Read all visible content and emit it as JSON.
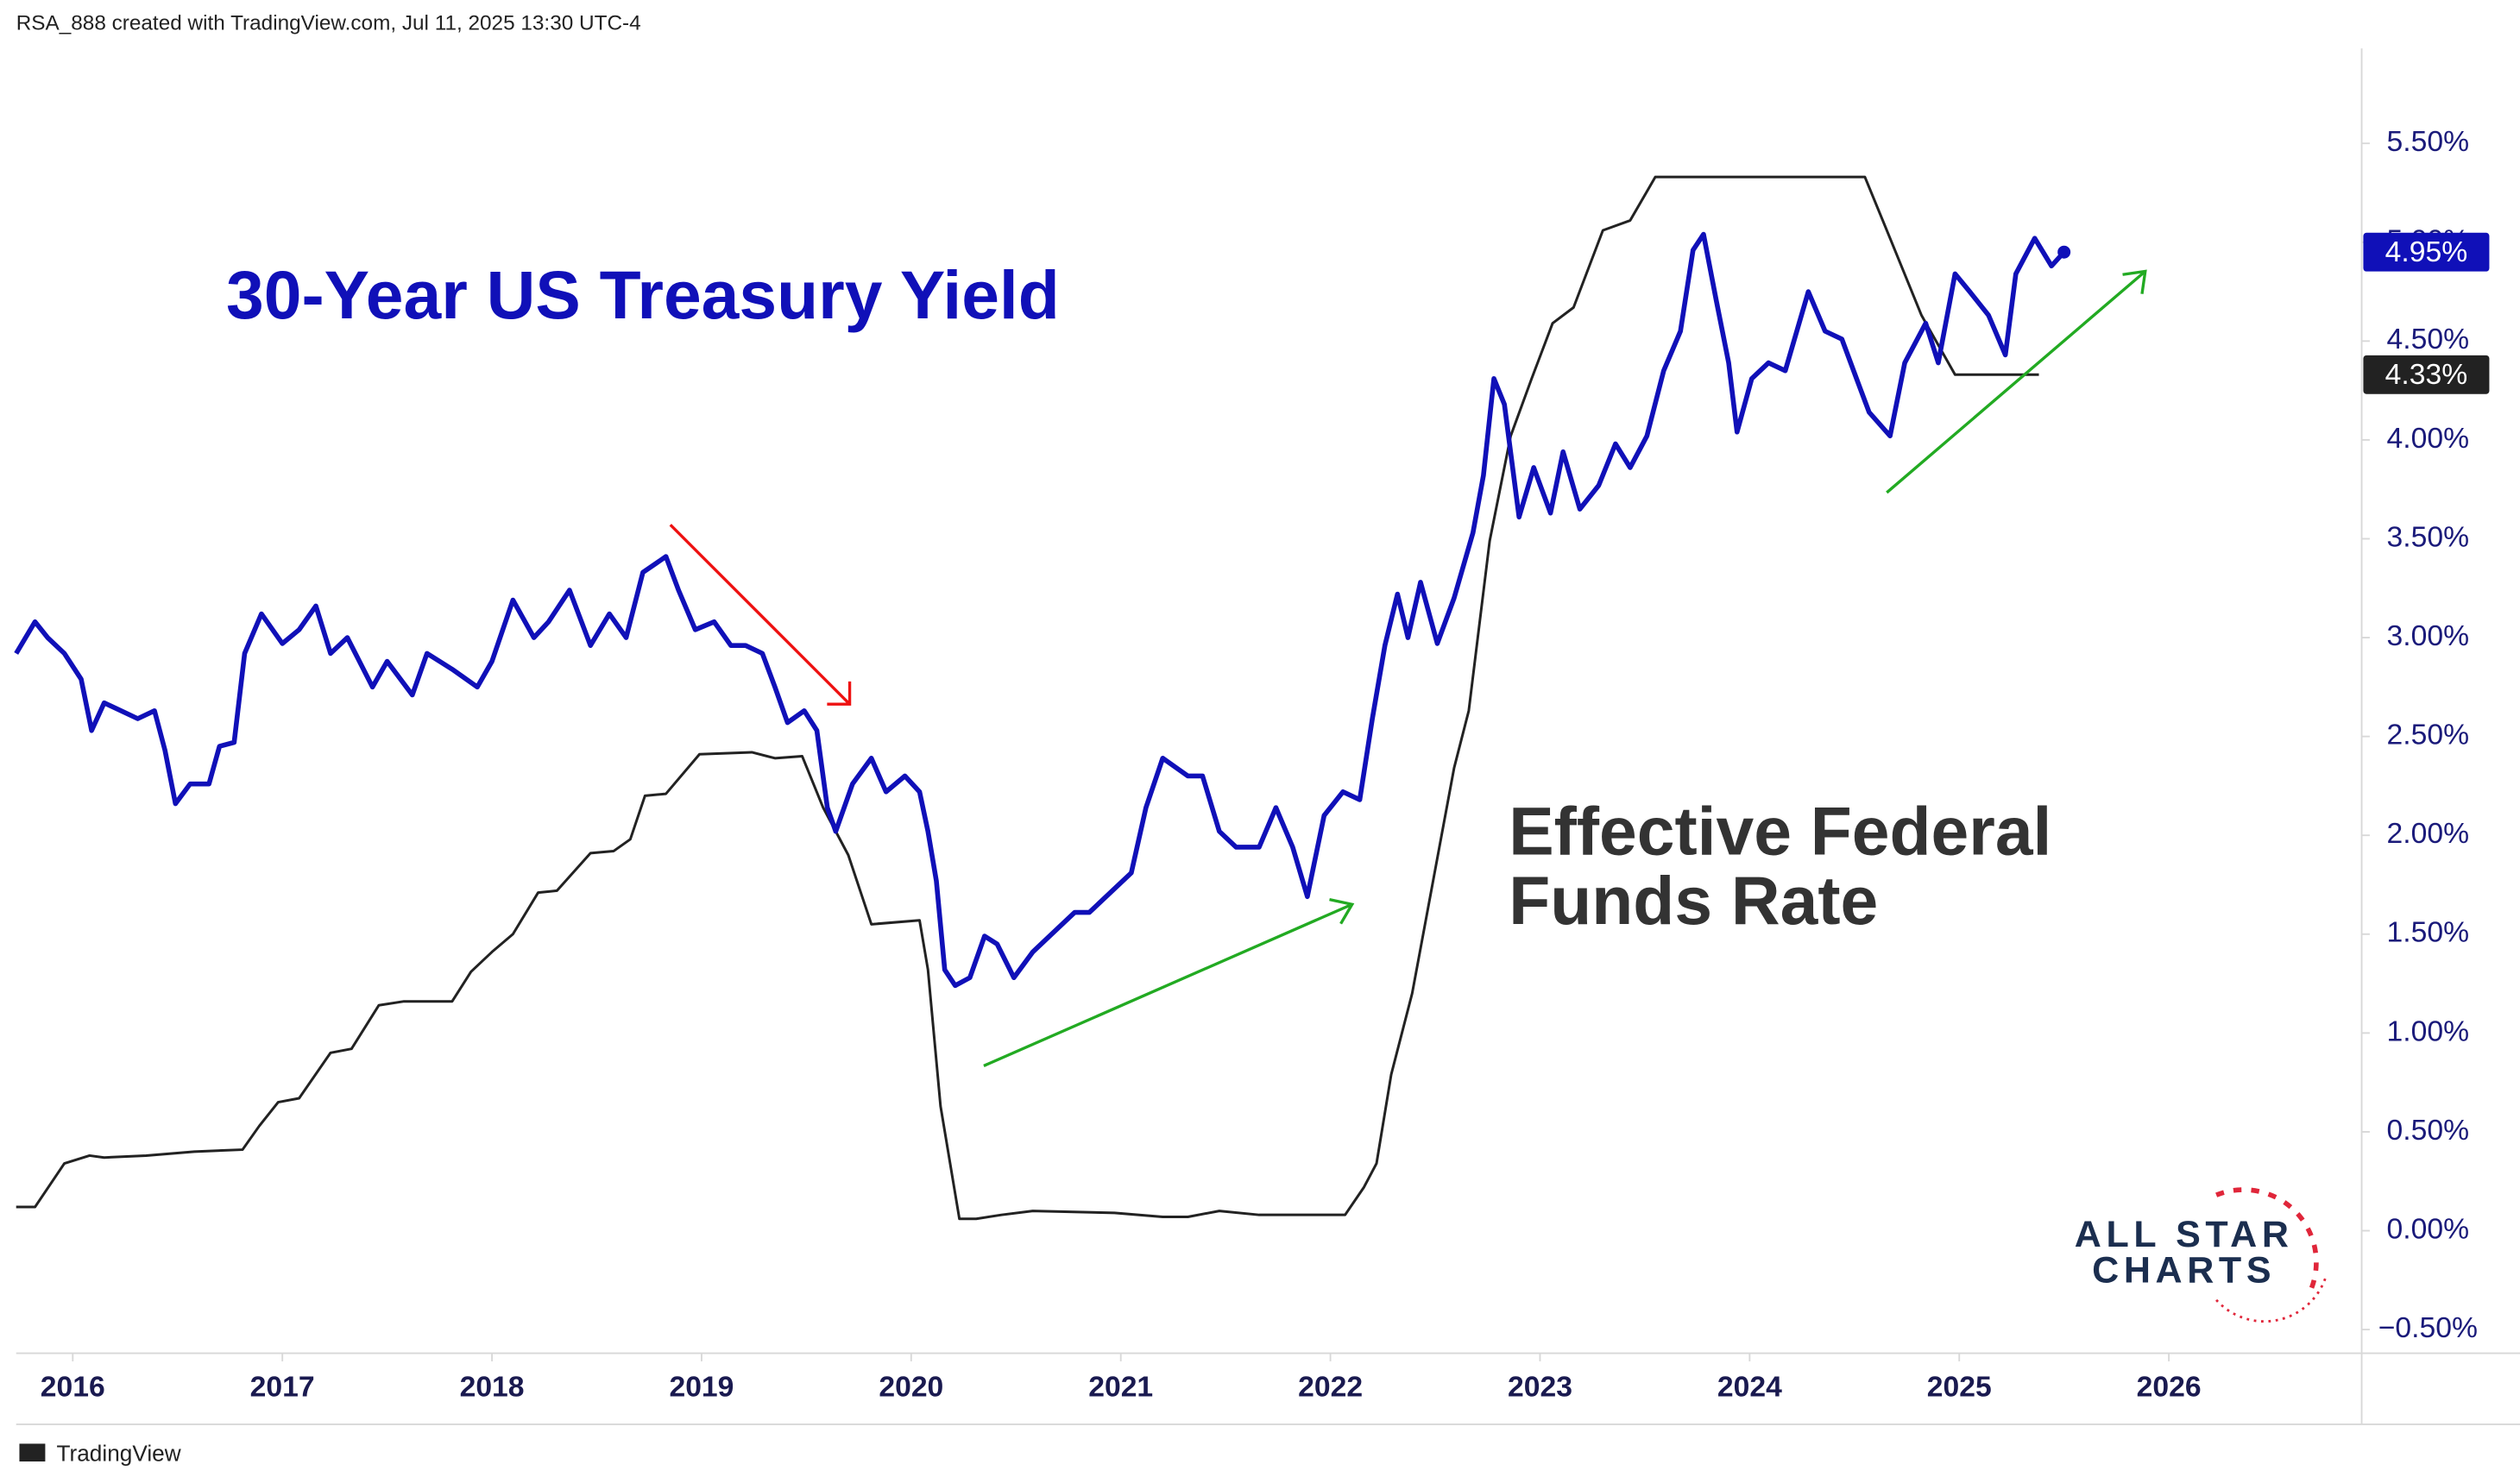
{
  "header": {
    "text": "RSA_888 created with TradingView.com, Jul 11, 2025 13:30 UTC-4"
  },
  "footer": {
    "text": "TradingView"
  },
  "logo": {
    "line1": "ALL STAR",
    "line2": "CHARTS"
  },
  "chart_data": {
    "type": "line",
    "annotations": [
      "30-Year US Treasury Yield",
      "Effective Federal",
      "Funds Rate"
    ],
    "xlim": [
      2015.73,
      2026.92
    ],
    "xticks": [
      2016,
      2017,
      2018,
      2019,
      2020,
      2021,
      2022,
      2023,
      2024,
      2025,
      2026
    ],
    "ylim": [
      -0.62,
      5.98
    ],
    "yticks": [
      {
        "value": -0.5,
        "label": "−0.50%"
      },
      {
        "value": 0,
        "label": "0.00%"
      },
      {
        "value": 0.5,
        "label": "0.50%"
      },
      {
        "value": 1,
        "label": "1.00%"
      },
      {
        "value": 1.5,
        "label": "1.50%"
      },
      {
        "value": 2,
        "label": "2.00%"
      },
      {
        "value": 2.5,
        "label": "2.50%"
      },
      {
        "value": 3,
        "label": "3.00%"
      },
      {
        "value": 3.5,
        "label": "3.50%"
      },
      {
        "value": 4,
        "label": "4.00%"
      },
      {
        "value": 4.5,
        "label": "4.50%"
      },
      {
        "value": 5,
        "label": "5.00%"
      },
      {
        "value": 5.5,
        "label": "5.50%"
      }
    ],
    "grid": false,
    "series": [
      {
        "color": "#1010b8",
        "price_label": {
          "value": 4.95,
          "label": "4.95%"
        },
        "x": [
          2015.73,
          2015.82,
          2015.88,
          2015.96,
          2016.04,
          2016.09,
          2016.15,
          2016.23,
          2016.31,
          2016.39,
          2016.44,
          2016.49,
          2016.56,
          2016.65,
          2016.7,
          2016.77,
          2016.82,
          2016.9,
          2017.0,
          2017.08,
          2017.16,
          2017.23,
          2017.31,
          2017.43,
          2017.5,
          2017.62,
          2017.69,
          2017.81,
          2017.93,
          2018.0,
          2018.1,
          2018.2,
          2018.27,
          2018.37,
          2018.47,
          2018.56,
          2018.64,
          2018.72,
          2018.83,
          2018.89,
          2018.97,
          2019.06,
          2019.14,
          2019.21,
          2019.29,
          2019.35,
          2019.41,
          2019.49,
          2019.55,
          2019.6,
          2019.64,
          2019.72,
          2019.81,
          2019.88,
          2019.97,
          2020.04,
          2020.08,
          2020.12,
          2020.16,
          2020.21,
          2020.28,
          2020.35,
          2020.41,
          2020.49,
          2020.58,
          2020.66,
          2020.78,
          2020.85,
          2020.97,
          2021.05,
          2021.12,
          2021.2,
          2021.32,
          2021.39,
          2021.47,
          2021.55,
          2021.66,
          2021.74,
          2021.82,
          2021.89,
          2021.97,
          2022.06,
          2022.14,
          2022.2,
          2022.26,
          2022.32,
          2022.37,
          2022.43,
          2022.51,
          2022.59,
          2022.68,
          2022.73,
          2022.78,
          2022.83,
          2022.9,
          2022.97,
          2023.05,
          2023.11,
          2023.19,
          2023.28,
          2023.36,
          2023.43,
          2023.51,
          2023.59,
          2023.67,
          2023.73,
          2023.78,
          2023.84,
          2023.9,
          2023.94,
          2024.01,
          2024.09,
          2024.17,
          2024.28,
          2024.36,
          2024.44,
          2024.51,
          2024.57,
          2024.67,
          2024.74,
          2024.84,
          2024.9,
          2024.98,
          2025.05,
          2025.14,
          2025.22,
          2025.27,
          2025.36,
          2025.44,
          2025.5
        ],
        "values": [
          2.92,
          3.08,
          3.0,
          2.92,
          2.79,
          2.53,
          2.67,
          2.63,
          2.59,
          2.63,
          2.43,
          2.16,
          2.26,
          2.26,
          2.45,
          2.47,
          2.92,
          3.12,
          2.97,
          3.04,
          3.16,
          2.92,
          3.0,
          2.75,
          2.88,
          2.71,
          2.92,
          2.84,
          2.75,
          2.88,
          3.19,
          3.0,
          3.08,
          3.24,
          2.96,
          3.12,
          3.0,
          3.33,
          3.41,
          3.24,
          3.04,
          3.08,
          2.96,
          2.96,
          2.92,
          2.75,
          2.57,
          2.63,
          2.53,
          2.14,
          2.02,
          2.26,
          2.39,
          2.22,
          2.3,
          2.22,
          2.02,
          1.77,
          1.32,
          1.24,
          1.28,
          1.49,
          1.45,
          1.28,
          1.41,
          1.49,
          1.61,
          1.61,
          1.73,
          1.81,
          2.14,
          2.39,
          2.3,
          2.3,
          2.02,
          1.94,
          1.94,
          2.14,
          1.94,
          1.69,
          2.1,
          2.22,
          2.18,
          2.59,
          2.96,
          3.22,
          3.0,
          3.28,
          2.97,
          3.2,
          3.53,
          3.82,
          4.31,
          4.18,
          3.61,
          3.86,
          3.63,
          3.94,
          3.65,
          3.77,
          3.98,
          3.86,
          4.02,
          4.35,
          4.55,
          4.96,
          5.04,
          4.71,
          4.39,
          4.04,
          4.31,
          4.39,
          4.35,
          4.75,
          4.55,
          4.51,
          4.31,
          4.14,
          4.02,
          4.39,
          4.59,
          4.39,
          4.84,
          4.75,
          4.63,
          4.43,
          4.84,
          5.02,
          4.88,
          4.95
        ]
      },
      {
        "color": "#222222",
        "price_label": {
          "value": 4.33,
          "label": "4.33%"
        },
        "x": [
          2015.73,
          2015.82,
          2015.96,
          2016.08,
          2016.15,
          2016.35,
          2016.58,
          2016.81,
          2016.89,
          2016.98,
          2017.08,
          2017.23,
          2017.33,
          2017.46,
          2017.58,
          2017.81,
          2017.9,
          2018.0,
          2018.1,
          2018.22,
          2018.31,
          2018.47,
          2018.58,
          2018.66,
          2018.73,
          2018.83,
          2018.99,
          2019.24,
          2019.35,
          2019.48,
          2019.58,
          2019.7,
          2019.81,
          2020.04,
          2020.08,
          2020.14,
          2020.23,
          2020.31,
          2020.43,
          2020.58,
          2020.97,
          2021.2,
          2021.32,
          2021.47,
          2021.66,
          2022.07,
          2022.16,
          2022.22,
          2022.29,
          2022.39,
          2022.49,
          2022.59,
          2022.66,
          2022.76,
          2022.86,
          2022.96,
          2023.06,
          2023.16,
          2023.3,
          2023.43,
          2023.55,
          2024.55,
          2024.67,
          2024.82,
          2024.98,
          2025.38
        ],
        "values": [
          0.12,
          0.12,
          0.34,
          0.38,
          0.37,
          0.38,
          0.4,
          0.41,
          0.53,
          0.65,
          0.67,
          0.9,
          0.92,
          1.14,
          1.16,
          1.16,
          1.31,
          1.41,
          1.5,
          1.71,
          1.72,
          1.91,
          1.92,
          1.98,
          2.2,
          2.21,
          2.41,
          2.42,
          2.39,
          2.4,
          2.14,
          1.9,
          1.55,
          1.57,
          1.32,
          0.63,
          0.06,
          0.06,
          0.08,
          0.1,
          0.09,
          0.07,
          0.07,
          0.1,
          0.08,
          0.08,
          0.22,
          0.34,
          0.79,
          1.2,
          1.77,
          2.34,
          2.63,
          3.49,
          4.02,
          4.31,
          4.59,
          4.67,
          5.06,
          5.11,
          5.33,
          5.33,
          5.02,
          4.63,
          4.33,
          4.33
        ]
      }
    ]
  }
}
